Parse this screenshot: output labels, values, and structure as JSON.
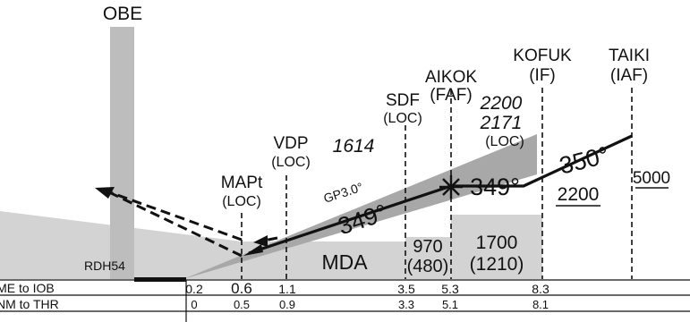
{
  "colors": {
    "terrain": "#d3d3d3",
    "ink": "#111111",
    "track": "#a8a8a8"
  },
  "obstacle": {
    "label": "OBE"
  },
  "fixes": {
    "mapt": {
      "name": "MAPt",
      "sub": "(LOC)"
    },
    "vdp": {
      "name": "VDP",
      "sub": "(LOC)"
    },
    "sdf": {
      "name": "SDF",
      "sub": "(LOC)"
    },
    "faf": {
      "name": "AIKOK",
      "sub": "(FAF)"
    },
    "if": {
      "name": "KOFUK",
      "sub": "(IF)"
    },
    "iaf": {
      "name": "TAIKI",
      "sub": "(IAF)"
    }
  },
  "altitudes": {
    "vdp_alt": "1614",
    "faf_alt_1": "2200",
    "faf_alt_2": "2171",
    "faf_alt_sub": "(LOC)",
    "iaf_alt": "5000",
    "if_alt": "2200"
  },
  "courses": {
    "final_1": "349°",
    "final_2": "349°",
    "initial": "350°"
  },
  "glidepath": {
    "label": "GP3.0°"
  },
  "rdh": "RDH54",
  "minimums": {
    "mda": "MDA",
    "sdf_seg": "970",
    "sdf_seg_sub": "(480)",
    "faf_seg": "1700",
    "faf_seg_sub": "(1210)"
  },
  "distance_table": {
    "row1_label": "DME to IOB",
    "row1_values": [
      "0.2",
      "0.6",
      "1.1",
      "3.5",
      "5.3",
      "8.3"
    ],
    "row2_label": "NM to THR",
    "row2_values": [
      "0",
      "0.5",
      "0.9",
      "3.3",
      "5.1",
      "8.1"
    ]
  }
}
